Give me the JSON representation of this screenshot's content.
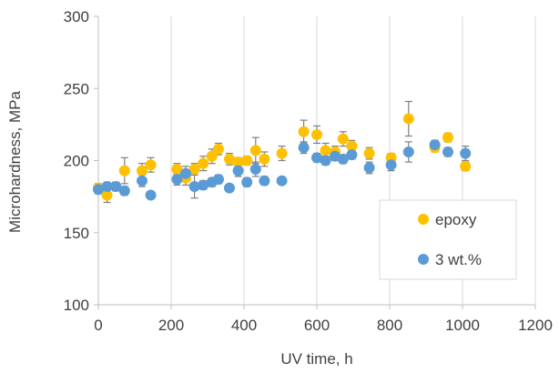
{
  "chart_data": {
    "type": "scatter",
    "title": "",
    "xlabel": "UV time, h",
    "ylabel": "Microhardness, MPa",
    "xlim": [
      0,
      1200
    ],
    "ylim": [
      100,
      300
    ],
    "xticks": [
      0,
      200,
      400,
      600,
      800,
      1000,
      1200
    ],
    "yticks": [
      100,
      150,
      200,
      250,
      300
    ],
    "grid": "vertical",
    "legend_position": "bottom-right",
    "series": [
      {
        "name": "epoxy",
        "color": "#FFC000",
        "points": [
          {
            "x": 0,
            "y": 181,
            "err": 3
          },
          {
            "x": 24,
            "y": 176,
            "err": 5
          },
          {
            "x": 48,
            "y": 182,
            "err": 3
          },
          {
            "x": 72,
            "y": 193,
            "err": 9
          },
          {
            "x": 120,
            "y": 193,
            "err": 5
          },
          {
            "x": 144,
            "y": 197,
            "err": 5
          },
          {
            "x": 216,
            "y": 194,
            "err": 4
          },
          {
            "x": 240,
            "y": 188,
            "err": 5
          },
          {
            "x": 264,
            "y": 194,
            "err": 4
          },
          {
            "x": 288,
            "y": 198,
            "err": 5
          },
          {
            "x": 312,
            "y": 203,
            "err": 5
          },
          {
            "x": 330,
            "y": 208,
            "err": 4
          },
          {
            "x": 360,
            "y": 201,
            "err": 4
          },
          {
            "x": 384,
            "y": 199,
            "err": 3
          },
          {
            "x": 408,
            "y": 200,
            "err": 3
          },
          {
            "x": 432,
            "y": 207,
            "err": 9
          },
          {
            "x": 456,
            "y": 201,
            "err": 5
          },
          {
            "x": 504,
            "y": 205,
            "err": 5
          },
          {
            "x": 564,
            "y": 220,
            "err": 8
          },
          {
            "x": 600,
            "y": 218,
            "err": 6
          },
          {
            "x": 624,
            "y": 207,
            "err": 5
          },
          {
            "x": 650,
            "y": 206,
            "err": 4
          },
          {
            "x": 672,
            "y": 215,
            "err": 5
          },
          {
            "x": 696,
            "y": 210,
            "err": 4
          },
          {
            "x": 744,
            "y": 205,
            "err": 4
          },
          {
            "x": 804,
            "y": 202,
            "err": 3
          },
          {
            "x": 852,
            "y": 229,
            "err": 12
          },
          {
            "x": 924,
            "y": 209,
            "err": 3
          },
          {
            "x": 960,
            "y": 216,
            "err": 3
          },
          {
            "x": 1008,
            "y": 196,
            "err": 3
          }
        ]
      },
      {
        "name": "3 wt.%",
        "color": "#5B9BD5",
        "points": [
          {
            "x": 0,
            "y": 180,
            "err": 3
          },
          {
            "x": 24,
            "y": 182,
            "err": 3
          },
          {
            "x": 48,
            "y": 182,
            "err": 3
          },
          {
            "x": 72,
            "y": 179,
            "err": 3
          },
          {
            "x": 120,
            "y": 186,
            "err": 4
          },
          {
            "x": 144,
            "y": 176,
            "err": 2
          },
          {
            "x": 216,
            "y": 187,
            "err": 4
          },
          {
            "x": 240,
            "y": 191,
            "err": 5
          },
          {
            "x": 264,
            "y": 182,
            "err": 8
          },
          {
            "x": 288,
            "y": 183,
            "err": 3
          },
          {
            "x": 312,
            "y": 185,
            "err": 3
          },
          {
            "x": 330,
            "y": 187,
            "err": 3
          },
          {
            "x": 360,
            "y": 181,
            "err": 2
          },
          {
            "x": 384,
            "y": 193,
            "err": 4
          },
          {
            "x": 408,
            "y": 185,
            "err": 3
          },
          {
            "x": 432,
            "y": 194,
            "err": 5
          },
          {
            "x": 456,
            "y": 186,
            "err": 3
          },
          {
            "x": 504,
            "y": 186,
            "err": 2
          },
          {
            "x": 564,
            "y": 209,
            "err": 4
          },
          {
            "x": 600,
            "y": 202,
            "err": 3
          },
          {
            "x": 624,
            "y": 200,
            "err": 3
          },
          {
            "x": 650,
            "y": 203,
            "err": 3
          },
          {
            "x": 672,
            "y": 201,
            "err": 3
          },
          {
            "x": 696,
            "y": 204,
            "err": 3
          },
          {
            "x": 744,
            "y": 195,
            "err": 4
          },
          {
            "x": 804,
            "y": 197,
            "err": 4
          },
          {
            "x": 852,
            "y": 206,
            "err": 7
          },
          {
            "x": 924,
            "y": 211,
            "err": 3
          },
          {
            "x": 960,
            "y": 206,
            "err": 3
          },
          {
            "x": 1008,
            "y": 205,
            "err": 5
          }
        ]
      }
    ]
  }
}
